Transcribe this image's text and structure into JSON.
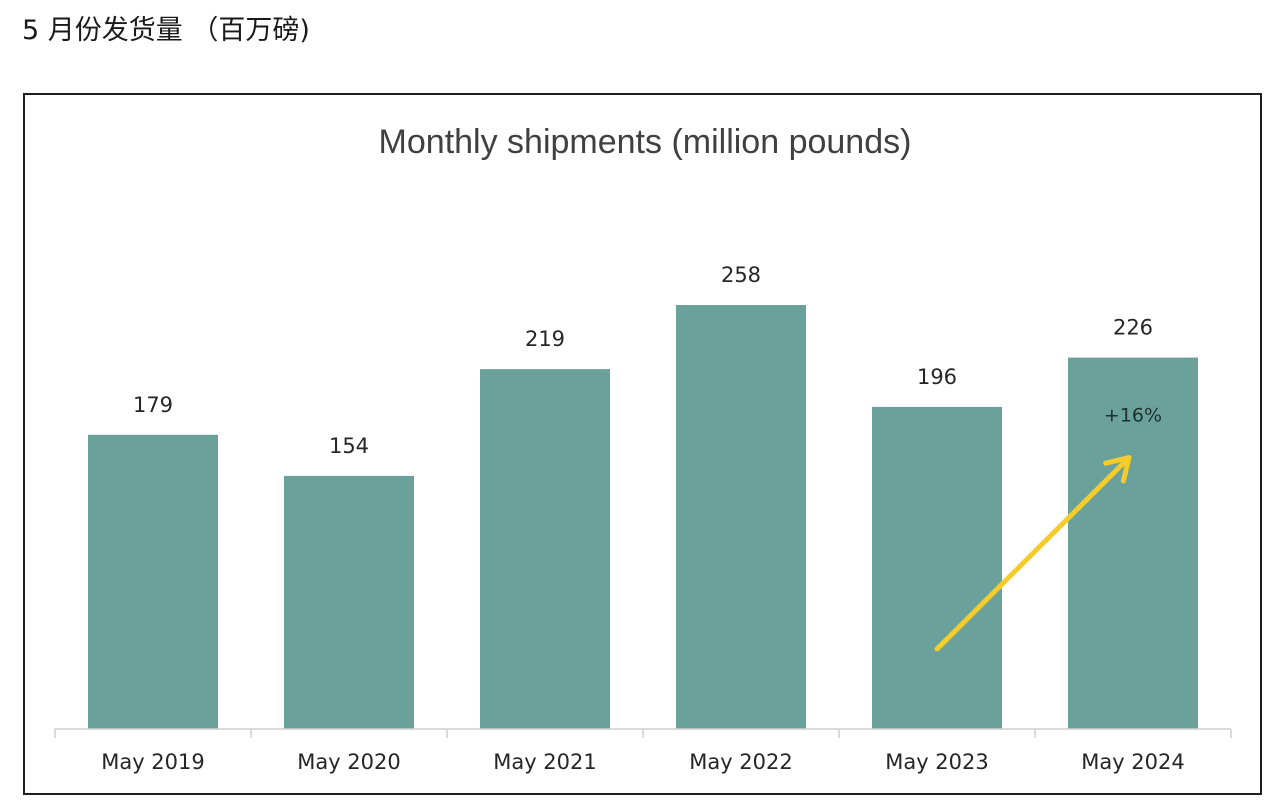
{
  "page": {
    "heading": "5 月份发货量 （百万磅)"
  },
  "chart_data": {
    "type": "bar",
    "title": "Monthly shipments (million pounds)",
    "categories": [
      "May 2019",
      "May 2020",
      "May 2021",
      "May 2022",
      "May 2023",
      "May 2024"
    ],
    "values": [
      179,
      154,
      219,
      258,
      196,
      226
    ],
    "xlabel": "",
    "ylabel": "",
    "ylim": [
      0,
      258
    ],
    "grid": false,
    "legend": "none",
    "bar_color": "#6ba19b",
    "annotation": {
      "text": "+16%",
      "arrow_color": "#f5cc2a",
      "from_category": "May 2023",
      "to_category": "May 2024"
    }
  }
}
